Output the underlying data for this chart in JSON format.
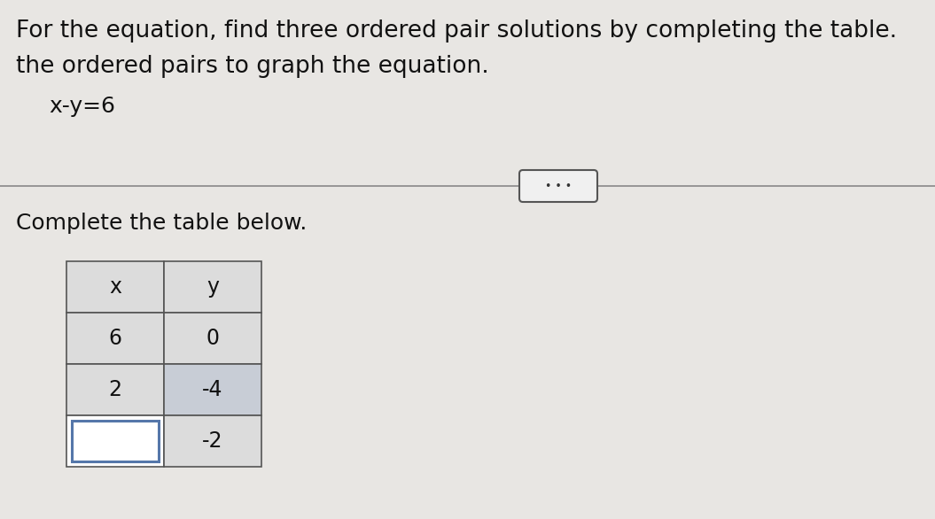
{
  "background_color": "#e8e6e3",
  "title_line1": "For the equation, find three ordered pair solutions by completing the table.",
  "title_line2": "the ordered pairs to graph the equation.",
  "equation": "x-y=6",
  "subtitle": "Complete the table below.",
  "table_headers": [
    "x",
    "y"
  ],
  "table_rows": [
    [
      "6",
      "0"
    ],
    [
      "2",
      "-4"
    ],
    [
      "",
      "-2"
    ]
  ],
  "text_color": "#111111",
  "table_border_color": "#555555",
  "cell_bg_normal": "#dcdcdc",
  "cell_bg_highlight": "#c8cdd6",
  "cell_bg_empty": "#ffffff",
  "cell_border_empty": "#5577aa",
  "divider_color": "#888888",
  "btn_face": "#f0f0f0",
  "btn_edge": "#555555",
  "font_size_title": 19,
  "font_size_equation": 18,
  "font_size_subtitle": 18,
  "font_size_table": 17
}
